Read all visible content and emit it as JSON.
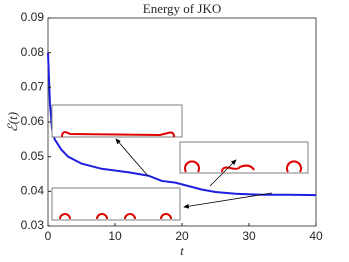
{
  "chart_data": {
    "type": "line",
    "title": "Energy of JKO",
    "xlabel": "t",
    "ylabel": "ℰ(t)",
    "x": [
      0,
      0.3,
      0.6,
      1,
      2,
      3,
      5,
      8,
      12,
      15,
      17,
      19,
      21,
      23,
      25,
      28,
      32,
      36,
      40
    ],
    "values": [
      0.08,
      0.065,
      0.058,
      0.055,
      0.052,
      0.05,
      0.048,
      0.0465,
      0.0455,
      0.0445,
      0.043,
      0.0425,
      0.0415,
      0.0405,
      0.0398,
      0.0393,
      0.039,
      0.039,
      0.0389
    ],
    "color": "#1f1fe0",
    "xlim": [
      0,
      40
    ],
    "xticks": [
      0,
      10,
      20,
      30,
      40
    ],
    "ylim": [
      0.03,
      0.09
    ],
    "yticks": [
      0.03,
      0.04,
      0.05,
      0.06,
      0.07,
      0.08,
      0.09
    ]
  }
}
